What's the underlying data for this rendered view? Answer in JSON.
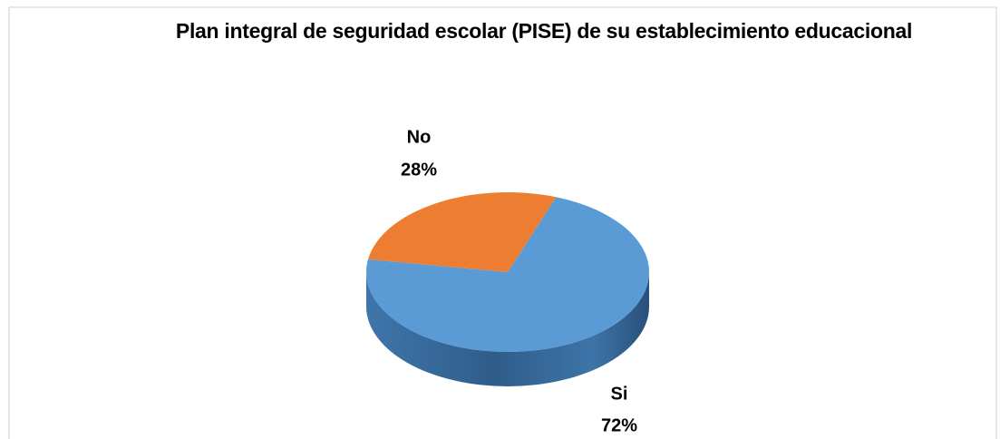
{
  "chart_data": {
    "type": "pie",
    "title": "Plan integral de seguridad escolar (PISE) de su establecimiento educacional",
    "categories": [
      "Si",
      "No"
    ],
    "values": [
      72,
      28
    ],
    "value_labels": [
      "72%",
      "28%"
    ],
    "colors": [
      "#5b9bd5",
      "#ed7d31"
    ]
  }
}
